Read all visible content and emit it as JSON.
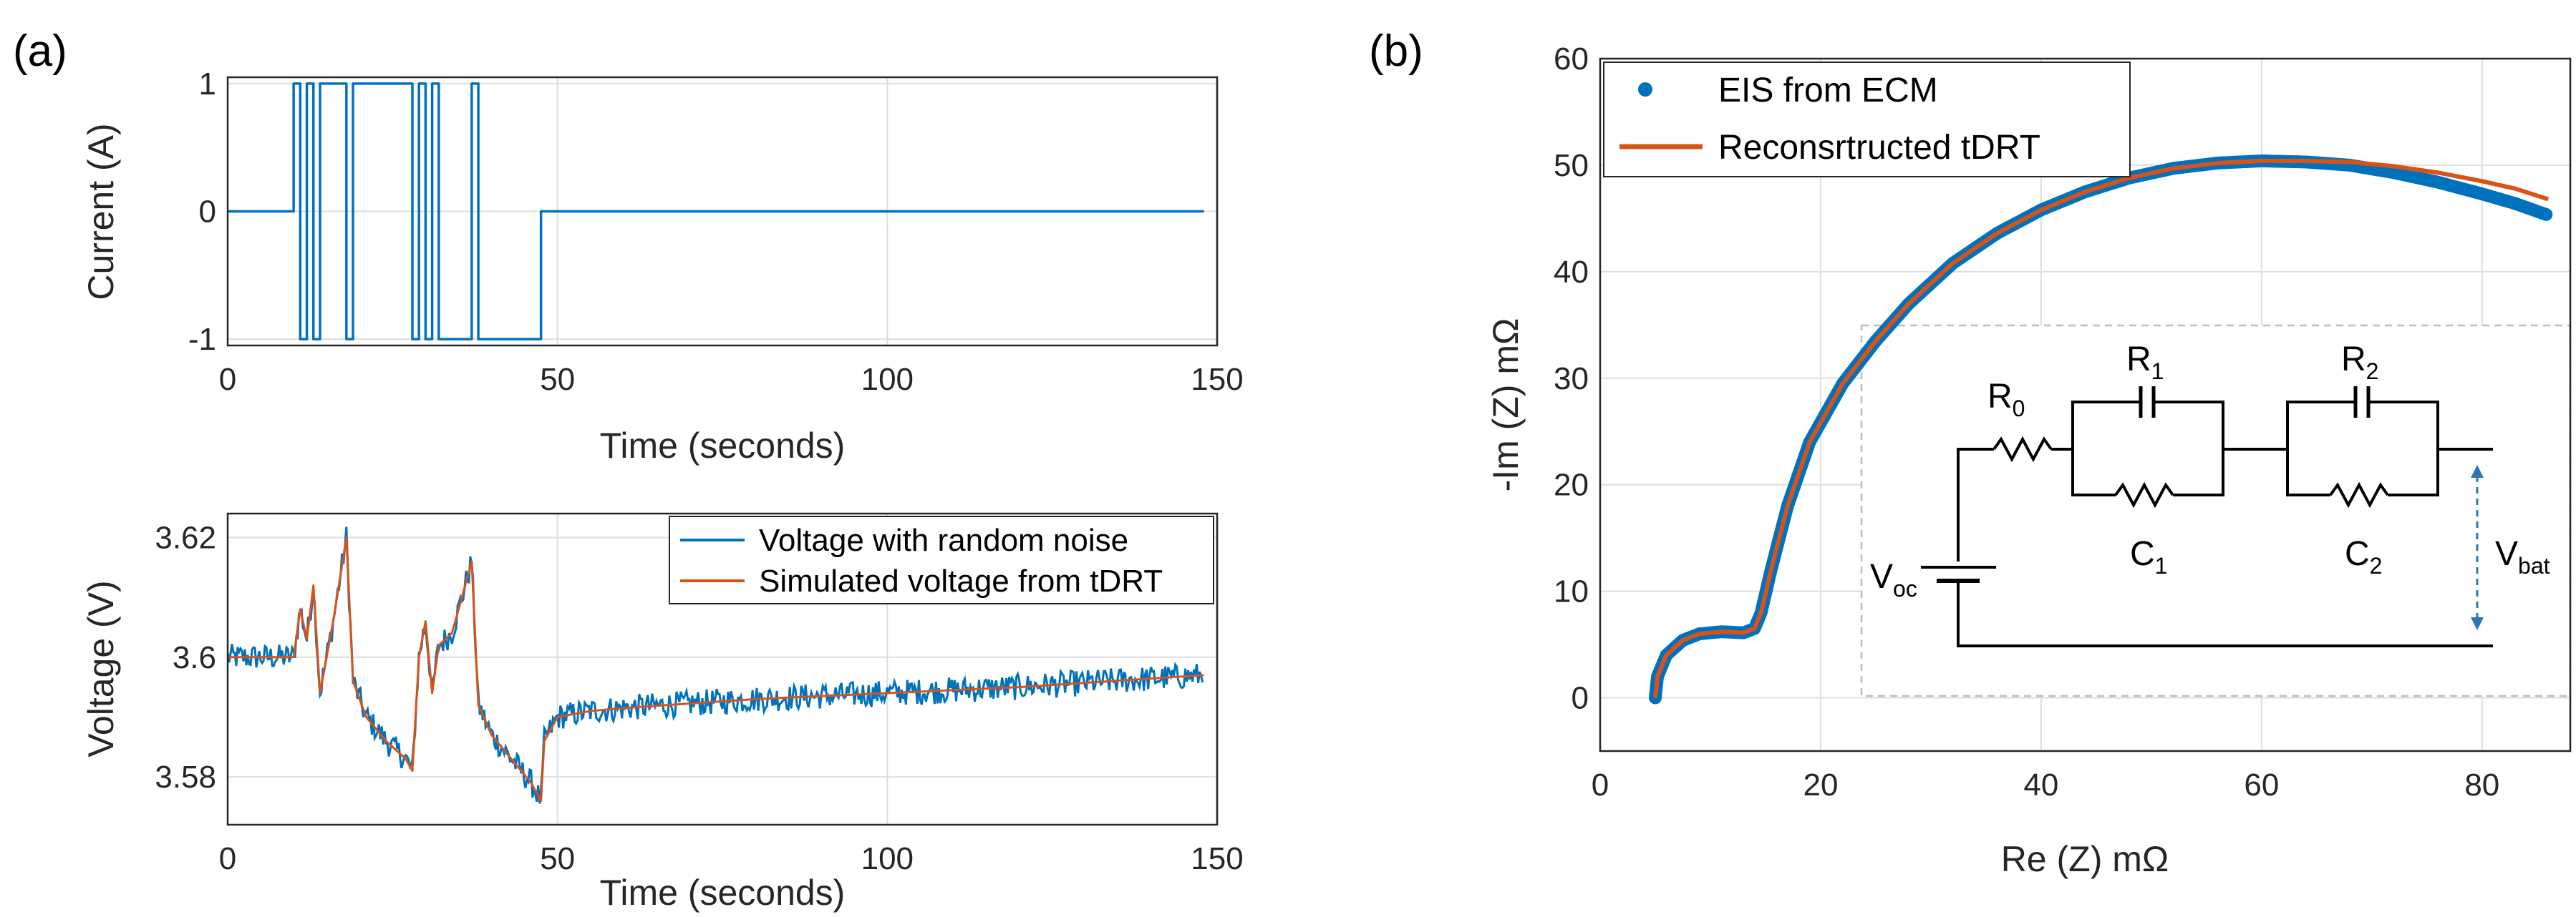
{
  "panels": {
    "a_label": "(a)",
    "b_label": "(b)"
  },
  "chart_data": [
    {
      "id": "current",
      "type": "line",
      "title": "",
      "xlabel": "Time (seconds)",
      "ylabel": "Current (A)",
      "xlim": [
        0,
        150
      ],
      "ylim": [
        -1.05,
        1.05
      ],
      "xticks": [
        "0",
        "50",
        "100",
        "150"
      ],
      "yticks": [
        "-1",
        "0",
        "1"
      ],
      "grid": true,
      "series": [
        {
          "name": "Current",
          "color": "#0072BD",
          "x": [
            0,
            10,
            10,
            11,
            11,
            12,
            12,
            13,
            13,
            14,
            14,
            18,
            18,
            19,
            19,
            28,
            28,
            29,
            29,
            30,
            30,
            31,
            31,
            32,
            32,
            37,
            37,
            38,
            38,
            47.5,
            47.5,
            148
          ],
          "y": [
            0,
            0,
            1,
            1,
            -1,
            -1,
            1,
            1,
            -1,
            -1,
            1,
            1,
            -1,
            -1,
            1,
            1,
            -1,
            -1,
            1,
            1,
            -1,
            -1,
            1,
            1,
            -1,
            -1,
            1,
            1,
            -1,
            -1,
            0,
            0
          ]
        }
      ]
    },
    {
      "id": "voltage",
      "type": "line",
      "title": "",
      "xlabel": "Time (seconds)",
      "ylabel": "Voltage (V)",
      "xlim": [
        0,
        150
      ],
      "ylim": [
        3.572,
        3.624
      ],
      "xticks": [
        "0",
        "50",
        "100",
        "150"
      ],
      "yticks": [
        "3.58",
        "3.6",
        "3.62"
      ],
      "grid": true,
      "legend": "top-right",
      "series": [
        {
          "name": "Voltage with random noise",
          "color": "#0072BD",
          "noise_band": 0.0022,
          "x": [
            0,
            10,
            11,
            12,
            13,
            14,
            16,
            18,
            19,
            21,
            24,
            27,
            28,
            29,
            30,
            31,
            32,
            34,
            37,
            38,
            40,
            43,
            46,
            47.5,
            48,
            50,
            55,
            60,
            80,
            100,
            120,
            148
          ],
          "y": [
            3.6,
            3.6,
            3.608,
            3.603,
            3.612,
            3.594,
            3.606,
            3.62,
            3.596,
            3.59,
            3.586,
            3.583,
            3.581,
            3.6,
            3.606,
            3.594,
            3.602,
            3.604,
            3.616,
            3.592,
            3.587,
            3.583,
            3.579,
            3.576,
            3.586,
            3.59,
            3.591,
            3.5915,
            3.593,
            3.594,
            3.595,
            3.597
          ]
        },
        {
          "name": "Simulated voltage from tDRT",
          "color": "#D95319",
          "x": [
            0,
            10,
            11,
            12,
            13,
            14,
            16,
            18,
            19,
            21,
            24,
            27,
            28,
            29,
            30,
            31,
            32,
            34,
            37,
            38,
            40,
            43,
            46,
            47.5,
            48,
            50,
            55,
            60,
            80,
            100,
            120,
            148
          ],
          "y": [
            3.6,
            3.6,
            3.608,
            3.603,
            3.612,
            3.594,
            3.606,
            3.62,
            3.596,
            3.59,
            3.586,
            3.583,
            3.581,
            3.6,
            3.606,
            3.594,
            3.602,
            3.604,
            3.616,
            3.592,
            3.587,
            3.583,
            3.579,
            3.576,
            3.586,
            3.59,
            3.591,
            3.5915,
            3.593,
            3.594,
            3.595,
            3.597
          ]
        }
      ]
    },
    {
      "id": "nyquist",
      "type": "scatter",
      "title": "",
      "xlabel": "Re (Z) mΩ",
      "ylabel": "-Im (Z) mΩ",
      "xlim": [
        0,
        88
      ],
      "ylim": [
        -5,
        60
      ],
      "xticks": [
        "0",
        "20",
        "40",
        "60",
        "80"
      ],
      "yticks": [
        "0",
        "10",
        "20",
        "30",
        "40",
        "50",
        "60"
      ],
      "grid": true,
      "legend": "top-left",
      "series": [
        {
          "name": "EIS from ECM",
          "color": "#0072BD",
          "x": [
            5,
            5.2,
            6,
            7.5,
            9,
            11,
            13,
            14,
            14.6,
            15.5,
            17,
            19,
            22,
            25,
            28,
            32,
            36,
            40,
            44,
            48,
            52,
            56,
            60,
            64,
            68,
            72,
            76,
            80,
            83,
            86
          ],
          "y": [
            0,
            2,
            4,
            5.4,
            6,
            6.2,
            6.1,
            6.5,
            8,
            12,
            18,
            24,
            29.5,
            33.5,
            37,
            40.8,
            43.6,
            45.8,
            47.5,
            48.8,
            49.7,
            50.2,
            50.4,
            50.3,
            50,
            49.3,
            48.4,
            47.3,
            46.4,
            45.3
          ]
        },
        {
          "name": "Reconsrtructed tDRT",
          "color": "#D95319",
          "x": [
            5,
            5.2,
            6,
            7.5,
            9,
            11,
            13,
            14,
            14.6,
            15.5,
            17,
            19,
            22,
            25,
            28,
            32,
            36,
            40,
            44,
            48,
            52,
            56,
            60,
            64,
            68,
            72,
            76,
            80,
            83,
            86
          ],
          "y": [
            0,
            2,
            4,
            5.4,
            6,
            6.2,
            6.1,
            6.5,
            8,
            12,
            18,
            24,
            29.5,
            33.5,
            37,
            40.8,
            43.6,
            45.8,
            47.5,
            48.8,
            49.7,
            50.2,
            50.4,
            50.4,
            50.3,
            49.9,
            49.3,
            48.5,
            47.8,
            46.8
          ]
        }
      ]
    }
  ],
  "circuit": {
    "r0": "R",
    "r0_sub": "0",
    "r1": "R",
    "r1_sub": "1",
    "r2": "R",
    "r2_sub": "2",
    "c1": "C",
    "c1_sub": "1",
    "c2": "C",
    "c2_sub": "2",
    "voc": "V",
    "voc_sub": "oc",
    "vbat": "V",
    "vbat_sub": "bat"
  }
}
